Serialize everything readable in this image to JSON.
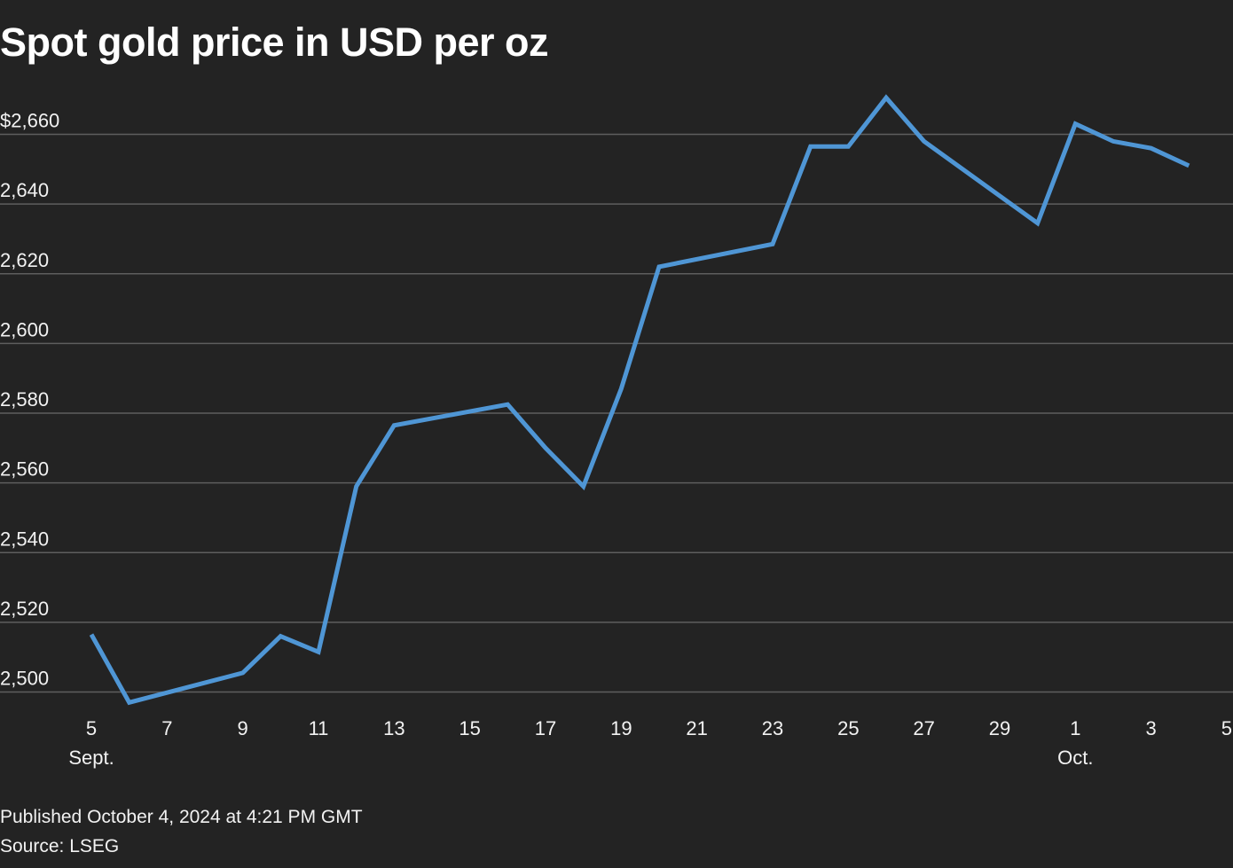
{
  "title": "Spot gold price in USD per oz",
  "footer": {
    "published": "Published October 4, 2024 at 4:21 PM GMT",
    "source": "Source: LSEG"
  },
  "colors": {
    "background": "#232323",
    "line": "#4f96d5",
    "grid": "#5e5e5e",
    "text": "#f2f2f2"
  },
  "chart_data": {
    "type": "line",
    "title": "Spot gold price in USD per oz",
    "xlabel": "",
    "ylabel": "",
    "grid": true,
    "x": [
      "Sept. 5",
      "Sept. 6",
      "Sept. 9",
      "Sept. 10",
      "Sept. 11",
      "Sept. 12",
      "Sept. 13",
      "Sept. 16",
      "Sept. 17",
      "Sept. 18",
      "Sept. 19",
      "Sept. 20",
      "Sept. 23",
      "Sept. 24",
      "Sept. 25",
      "Sept. 26",
      "Sept. 27",
      "Sept. 30",
      "Oct. 1",
      "Oct. 2",
      "Oct. 3",
      "Oct. 4"
    ],
    "x_index": [
      0,
      1,
      4,
      5,
      6,
      7,
      8,
      11,
      12,
      13,
      14,
      15,
      18,
      19,
      20,
      21,
      22,
      25,
      26,
      27,
      28,
      29
    ],
    "series": [
      {
        "name": "Spot gold",
        "values": [
          2516.5,
          2497,
          2505.5,
          2516,
          2511.5,
          2559,
          2576.5,
          2582.5,
          2570,
          2559,
          2587,
          2622,
          2628.5,
          2656.5,
          2656.5,
          2670.5,
          2658,
          2634.5,
          2663,
          2658,
          2656,
          2651
        ]
      }
    ],
    "x_range": [
      0,
      30
    ],
    "ylim": [
      2500,
      2660
    ],
    "y_ticks": [
      2500,
      2520,
      2540,
      2560,
      2580,
      2600,
      2620,
      2640,
      2660
    ],
    "y_tick_labels": [
      "2,500",
      "2,520",
      "2,540",
      "2,560",
      "2,580",
      "2,600",
      "2,620",
      "2,640",
      "$2,660"
    ],
    "x_ticks": [
      {
        "index": 0,
        "label": "5",
        "sublabel": "Sept."
      },
      {
        "index": 2,
        "label": "7",
        "sublabel": ""
      },
      {
        "index": 4,
        "label": "9",
        "sublabel": ""
      },
      {
        "index": 6,
        "label": "11",
        "sublabel": ""
      },
      {
        "index": 8,
        "label": "13",
        "sublabel": ""
      },
      {
        "index": 10,
        "label": "15",
        "sublabel": ""
      },
      {
        "index": 12,
        "label": "17",
        "sublabel": ""
      },
      {
        "index": 14,
        "label": "19",
        "sublabel": ""
      },
      {
        "index": 16,
        "label": "21",
        "sublabel": ""
      },
      {
        "index": 18,
        "label": "23",
        "sublabel": ""
      },
      {
        "index": 20,
        "label": "25",
        "sublabel": ""
      },
      {
        "index": 22,
        "label": "27",
        "sublabel": ""
      },
      {
        "index": 24,
        "label": "29",
        "sublabel": ""
      },
      {
        "index": 26,
        "label": "1",
        "sublabel": "Oct."
      },
      {
        "index": 28,
        "label": "3",
        "sublabel": ""
      },
      {
        "index": 30,
        "label": "5",
        "sublabel": ""
      }
    ]
  }
}
